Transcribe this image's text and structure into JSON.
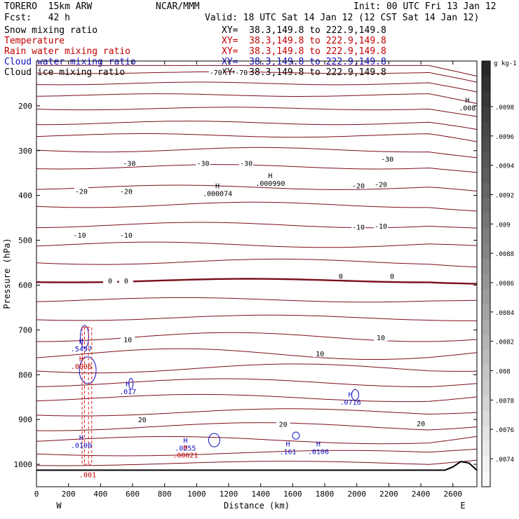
{
  "header": {
    "model": "TORERO  15km ARW",
    "center": "NCAR/MMM",
    "init": "Init: 00 UTC Fri 13 Jan 12",
    "fcst": "Fcst:   42 h",
    "valid": "Valid: 18 UTC Sat 14 Jan 12 (12 CST Sat 14 Jan 12)"
  },
  "legend": [
    {
      "name": "Snow mixing ratio",
      "color": "#000000",
      "xy": "XY=  38.3,149.8 to 222.9,149.8"
    },
    {
      "name": "Temperature",
      "color": "#c00000",
      "xy": "XY=  38.3,149.8 to 222.9,149.8"
    },
    {
      "name": "Rain water mixing ratio",
      "color": "#c00000",
      "xy": "XY=  38.3,149.8 to 222.9,149.8"
    },
    {
      "name": "Cloud water mixing ratio",
      "color": "#1010c0",
      "xy": "XY=  38.3,149.8 to 222.9,149.8"
    },
    {
      "name": "Cloud ice mixing ratio",
      "color": "#000000",
      "xy": "XY=  38.3,149.8 to 222.9,149.8"
    }
  ],
  "chart_data": {
    "type": "cross-section contour",
    "xlabel": "Distance (km)",
    "ylabel": "Pressure (hPa)",
    "xlim": [
      0,
      2750
    ],
    "ylim": [
      1050,
      100
    ],
    "x_ticks": [
      0,
      200,
      400,
      600,
      800,
      1000,
      1200,
      1400,
      1600,
      1800,
      2000,
      2200,
      2400,
      2600
    ],
    "y_ticks": [
      200,
      300,
      400,
      500,
      600,
      700,
      800,
      900,
      1000
    ],
    "x_end_labels": {
      "left": "W",
      "right": "E"
    },
    "colorbar": {
      "unit": "g kg-1",
      "ticks": [
        ".0098",
        ".0096",
        ".0094",
        ".0092",
        ".009",
        ".0088",
        ".0086",
        ".0084",
        ".0082",
        ".008",
        ".0078",
        ".0076",
        ".0074"
      ]
    },
    "temperature_contour_labels": [
      {
        "text": "-70",
        "x": 1120,
        "p": 125
      },
      {
        "text": "-70",
        "x": 1280,
        "p": 125
      },
      {
        "text": "-30",
        "x": 580,
        "p": 328
      },
      {
        "text": "-30",
        "x": 1040,
        "p": 328
      },
      {
        "text": "-30",
        "x": 1310,
        "p": 328
      },
      {
        "text": "-30",
        "x": 2190,
        "p": 318
      },
      {
        "text": "-20",
        "x": 280,
        "p": 390
      },
      {
        "text": "-20",
        "x": 560,
        "p": 390
      },
      {
        "text": "-20",
        "x": 2010,
        "p": 378
      },
      {
        "text": "-20",
        "x": 2150,
        "p": 375
      },
      {
        "text": "-10",
        "x": 270,
        "p": 488
      },
      {
        "text": "-10",
        "x": 560,
        "p": 488
      },
      {
        "text": "-10",
        "x": 2010,
        "p": 470
      },
      {
        "text": "-10",
        "x": 2150,
        "p": 468
      },
      {
        "text": "0",
        "x": 460,
        "p": 590
      },
      {
        "text": "0",
        "x": 560,
        "p": 590
      },
      {
        "text": "0",
        "x": 1900,
        "p": 580
      },
      {
        "text": "0",
        "x": 2220,
        "p": 580
      },
      {
        "text": "10",
        "x": 570,
        "p": 721
      },
      {
        "text": "10",
        "x": 1770,
        "p": 753
      },
      {
        "text": "10",
        "x": 2150,
        "p": 717
      },
      {
        "text": "20",
        "x": 660,
        "p": 900
      },
      {
        "text": "20",
        "x": 1540,
        "p": 910
      },
      {
        "text": "20",
        "x": 2400,
        "p": 908
      }
    ],
    "extrema": [
      {
        "symbol": "H",
        "value": ".000074",
        "x": 1130,
        "p": 384,
        "color": "#000000"
      },
      {
        "symbol": "H",
        "value": ".000990",
        "x": 1460,
        "p": 361,
        "color": "#000000"
      },
      {
        "symbol": "H",
        "value": ".008",
        "x": 2690,
        "p": 193,
        "color": "#000000"
      },
      {
        "symbol": "H",
        "value": ".5497",
        "x": 280,
        "p": 731,
        "color": "#1010c0"
      },
      {
        "symbol": "H",
        "value": ".0006",
        "x": 280,
        "p": 770,
        "color": "#c00000"
      },
      {
        "symbol": "H",
        "value": ".017",
        "x": 570,
        "p": 826,
        "color": "#1010c0"
      },
      {
        "symbol": "H",
        "value": ".0716",
        "x": 1960,
        "p": 850,
        "color": "#1010c0"
      },
      {
        "symbol": "H",
        "value": ".0100",
        "x": 280,
        "p": 946,
        "color": "#1010c0"
      },
      {
        "symbol": "H",
        "value": ".0255",
        "x": 930,
        "p": 952,
        "color": "#1010c0"
      },
      {
        "symbol": "H",
        "value": ".00021",
        "x": 930,
        "p": 968,
        "color": "#c00000"
      },
      {
        "symbol": "H",
        "value": ".161",
        "x": 1570,
        "p": 960,
        "color": "#1010c0"
      },
      {
        "symbol": "H",
        "value": ".0106",
        "x": 1760,
        "p": 960,
        "color": "#1010c0"
      },
      {
        "symbol": "",
        "value": ".001",
        "x": 320,
        "p": 1012,
        "color": "#c00000"
      }
    ]
  }
}
